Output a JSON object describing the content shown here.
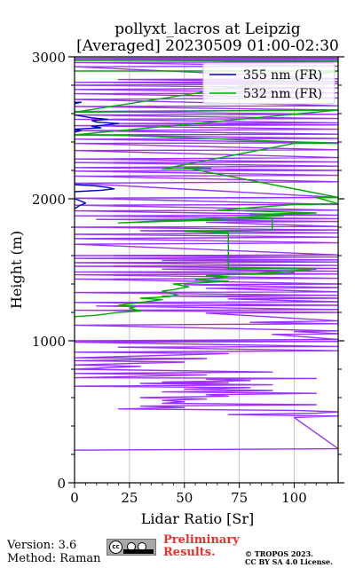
{
  "title": {
    "line1": "pollyxt_lacros at Leipzig",
    "line2": "[Averaged] 20230509 01:00-02:30"
  },
  "footer": {
    "version": "Version: 3.6",
    "method": "Method: Raman",
    "preliminary_line1": "Preliminary",
    "preliminary_line2": "Results.",
    "copyright_line1": "© TROPOS 2023.",
    "copyright_line2": "CC BY SA 4.0 License.",
    "license_badge_icon": "cc-by-sa-icon",
    "preliminary_color": "#e8302c"
  },
  "chart_data": {
    "type": "line",
    "orientation": "profile (x = lidar ratio, y = height)",
    "xlabel": "Lidar Ratio [Sr]",
    "ylabel": "Height (m)",
    "xlim": [
      0,
      120
    ],
    "ylim": [
      0,
      3000
    ],
    "xticks": [
      "0",
      "25",
      "50",
      "75",
      "100"
    ],
    "yticks": [
      "0",
      "1000",
      "2000",
      "3000"
    ],
    "grid": true,
    "legend_position": "top-right",
    "series": [
      {
        "name": "532 nm (FR)",
        "color": "#00aa00",
        "points": [
          [
            120,
            2975
          ],
          [
            0,
            2975
          ],
          [
            120,
            2975
          ],
          [
            120,
            2900
          ],
          [
            0,
            2900
          ],
          [
            120,
            2900
          ],
          [
            0,
            2610
          ],
          [
            70,
            2620
          ],
          [
            120,
            2625
          ],
          [
            0,
            2450
          ],
          [
            15,
            2450
          ],
          [
            120,
            2390
          ],
          [
            100,
            2390
          ],
          [
            40,
            2210
          ],
          [
            62,
            2215
          ],
          [
            50,
            2220
          ],
          [
            120,
            2010
          ],
          [
            110,
            2010
          ],
          [
            120,
            1965
          ],
          [
            100,
            1960
          ],
          [
            65,
            1920
          ],
          [
            90,
            1910
          ],
          [
            110,
            1900
          ],
          [
            80,
            1890
          ],
          [
            95,
            1880
          ],
          [
            75,
            1870
          ],
          [
            20,
            1830
          ],
          [
            40,
            1840
          ],
          [
            65,
            1850
          ],
          [
            90,
            1860
          ],
          [
            90,
            1780
          ],
          [
            50,
            1770
          ],
          [
            70,
            1760
          ],
          [
            70,
            1510
          ],
          [
            110,
            1505
          ],
          [
            78,
            1470
          ],
          [
            100,
            1480
          ],
          [
            60,
            1460
          ],
          [
            70,
            1450
          ],
          [
            55,
            1430
          ],
          [
            70,
            1420
          ],
          [
            60,
            1410
          ],
          [
            45,
            1400
          ],
          [
            52,
            1380
          ],
          [
            48,
            1370
          ],
          [
            45,
            1360
          ],
          [
            40,
            1350
          ],
          [
            47,
            1320
          ],
          [
            42,
            1310
          ],
          [
            30,
            1300
          ],
          [
            40,
            1290
          ],
          [
            20,
            1250
          ],
          [
            28,
            1240
          ],
          [
            25,
            1230
          ],
          [
            30,
            1210
          ],
          [
            20,
            1200
          ],
          [
            10,
            1180
          ],
          [
            0,
            1170
          ],
          [
            0,
            1150
          ]
        ]
      },
      {
        "name": "355 nm (FR)",
        "color": "#0000cc",
        "points": [
          [
            0,
            2680
          ],
          [
            3,
            2680
          ],
          [
            0,
            2670
          ],
          [
            0,
            2590
          ],
          [
            8,
            2570
          ],
          [
            15,
            2560
          ],
          [
            8,
            2550
          ],
          [
            10,
            2540
          ],
          [
            20,
            2530
          ],
          [
            8,
            2510
          ],
          [
            12,
            2500
          ],
          [
            0,
            2490
          ],
          [
            3,
            2480
          ],
          [
            0,
            2470
          ],
          [
            0,
            2100
          ],
          [
            10,
            2090
          ],
          [
            15,
            2080
          ],
          [
            18,
            2070
          ],
          [
            12,
            2060
          ],
          [
            0,
            2050
          ],
          [
            0,
            2000
          ],
          [
            2,
            1990
          ],
          [
            5,
            1970
          ],
          [
            2,
            1950
          ],
          [
            0,
            1930
          ]
        ]
      },
      {
        "name": "",
        "color": "#9b30ff",
        "points": [
          [
            120,
            2990
          ],
          [
            0,
            2990
          ],
          [
            120,
            2985
          ],
          [
            0,
            2980
          ],
          [
            120,
            2965
          ],
          [
            0,
            2960
          ],
          [
            120,
            2935
          ],
          [
            0,
            2930
          ],
          [
            120,
            2845
          ],
          [
            20,
            2840
          ],
          [
            120,
            2825
          ],
          [
            0,
            2820
          ],
          [
            120,
            2810
          ],
          [
            0,
            2800
          ],
          [
            120,
            2780
          ],
          [
            0,
            2770
          ],
          [
            120,
            2745
          ],
          [
            0,
            2740
          ],
          [
            120,
            2710
          ],
          [
            0,
            2700
          ],
          [
            120,
            2655
          ],
          [
            0,
            2650
          ],
          [
            120,
            2625
          ],
          [
            0,
            2615
          ],
          [
            120,
            2595
          ],
          [
            0,
            2590
          ],
          [
            120,
            2565
          ],
          [
            0,
            2560
          ],
          [
            120,
            2535
          ],
          [
            20,
            2530
          ],
          [
            120,
            2520
          ],
          [
            0,
            2515
          ],
          [
            120,
            2490
          ],
          [
            0,
            2480
          ],
          [
            120,
            2455
          ],
          [
            0,
            2450
          ],
          [
            120,
            2425
          ],
          [
            0,
            2420
          ],
          [
            120,
            2395
          ],
          [
            0,
            2390
          ],
          [
            120,
            2345
          ],
          [
            0,
            2340
          ],
          [
            120,
            2290
          ],
          [
            0,
            2280
          ],
          [
            120,
            2260
          ],
          [
            0,
            2255
          ],
          [
            120,
            2230
          ],
          [
            0,
            2220
          ],
          [
            120,
            2200
          ],
          [
            0,
            2195
          ],
          [
            120,
            2165
          ],
          [
            0,
            2160
          ],
          [
            120,
            2120
          ],
          [
            0,
            2110
          ],
          [
            120,
            2010
          ],
          [
            0,
            2005
          ],
          [
            120,
            1960
          ],
          [
            0,
            1955
          ],
          [
            120,
            1920
          ],
          [
            0,
            1915
          ],
          [
            120,
            1885
          ],
          [
            0,
            1880
          ],
          [
            120,
            1860
          ],
          [
            10,
            1855
          ],
          [
            120,
            1840
          ],
          [
            60,
            1835
          ],
          [
            120,
            1805
          ],
          [
            0,
            1800
          ],
          [
            120,
            1780
          ],
          [
            30,
            1775
          ],
          [
            120,
            1760
          ],
          [
            0,
            1750
          ],
          [
            120,
            1730
          ],
          [
            0,
            1720
          ],
          [
            120,
            1690
          ],
          [
            0,
            1680
          ],
          [
            120,
            1605
          ],
          [
            0,
            1600
          ],
          [
            120,
            1590
          ],
          [
            0,
            1580
          ],
          [
            120,
            1570
          ],
          [
            40,
            1565
          ],
          [
            120,
            1555
          ],
          [
            0,
            1550
          ],
          [
            120,
            1530
          ],
          [
            0,
            1525
          ],
          [
            120,
            1510
          ],
          [
            40,
            1505
          ],
          [
            120,
            1490
          ],
          [
            0,
            1485
          ],
          [
            120,
            1470
          ],
          [
            0,
            1465
          ],
          [
            120,
            1440
          ],
          [
            0,
            1435
          ],
          [
            120,
            1400
          ],
          [
            50,
            1395
          ],
          [
            120,
            1375
          ],
          [
            60,
            1370
          ],
          [
            120,
            1345
          ],
          [
            0,
            1340
          ],
          [
            30,
            1335
          ],
          [
            120,
            1320
          ],
          [
            40,
            1315
          ],
          [
            120,
            1300
          ],
          [
            70,
            1295
          ],
          [
            120,
            1275
          ],
          [
            0,
            1270
          ],
          [
            120,
            1250
          ],
          [
            10,
            1245
          ],
          [
            120,
            1220
          ],
          [
            0,
            1215
          ],
          [
            120,
            1200
          ],
          [
            60,
            1195
          ],
          [
            120,
            1140
          ],
          [
            80,
            1130
          ],
          [
            120,
            1120
          ],
          [
            0,
            1110
          ],
          [
            120,
            1070
          ],
          [
            100,
            1065
          ],
          [
            120,
            1050
          ],
          [
            90,
            1045
          ],
          [
            120,
            1010
          ],
          [
            0,
            1000
          ],
          [
            120,
            995
          ],
          [
            0,
            990
          ],
          [
            120,
            960
          ],
          [
            20,
            955
          ],
          [
            120,
            930
          ],
          [
            0,
            920
          ],
          [
            70,
            910
          ],
          [
            0,
            880
          ],
          [
            60,
            875
          ],
          [
            0,
            860
          ],
          [
            50,
            850
          ],
          [
            0,
            830
          ],
          [
            30,
            820
          ],
          [
            0,
            800
          ],
          [
            90,
            780
          ],
          [
            0,
            770
          ],
          [
            60,
            760
          ],
          [
            0,
            740
          ],
          [
            110,
            735
          ],
          [
            60,
            730
          ],
          [
            80,
            720
          ],
          [
            40,
            710
          ],
          [
            70,
            705
          ],
          [
            30,
            700
          ],
          [
            90,
            690
          ],
          [
            0,
            680
          ],
          [
            80,
            670
          ],
          [
            50,
            660
          ],
          [
            90,
            650
          ],
          [
            40,
            640
          ],
          [
            110,
            630
          ],
          [
            60,
            620
          ],
          [
            70,
            610
          ],
          [
            30,
            600
          ],
          [
            60,
            590
          ],
          [
            40,
            580
          ],
          [
            50,
            570
          ],
          [
            40,
            560
          ],
          [
            110,
            550
          ],
          [
            30,
            540
          ],
          [
            50,
            530
          ],
          [
            20,
            520
          ],
          [
            100,
            510
          ],
          [
            120,
            500
          ],
          [
            110,
            490
          ],
          [
            70,
            480
          ],
          [
            120,
            470
          ],
          [
            100,
            460
          ],
          [
            120,
            240
          ],
          [
            0,
            230
          ]
        ]
      }
    ]
  }
}
